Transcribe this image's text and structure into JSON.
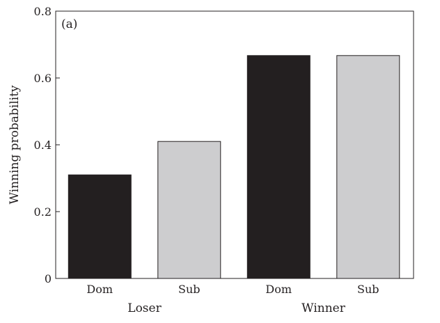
{
  "chart_data": {
    "type": "bar",
    "panel_label": "(a)",
    "ylabel": "Winning probability",
    "ylim": [
      0,
      0.8
    ],
    "yticks": [
      "0",
      "0.2",
      "0.4",
      "0.6",
      "0.8"
    ],
    "ytick_values": [
      0,
      0.2,
      0.4,
      0.6,
      0.8
    ],
    "groups": [
      "Loser",
      "Winner"
    ],
    "categories": [
      "Dom",
      "Sub",
      "Dom",
      "Sub"
    ],
    "category_groups": [
      "Loser",
      "Loser",
      "Winner",
      "Winner"
    ],
    "values": [
      0.31,
      0.41,
      0.667,
      0.667
    ],
    "bar_colors": [
      "#231f20",
      "#cdcdcf",
      "#231f20",
      "#cdcdcf"
    ],
    "grid": false,
    "legend": "none"
  }
}
